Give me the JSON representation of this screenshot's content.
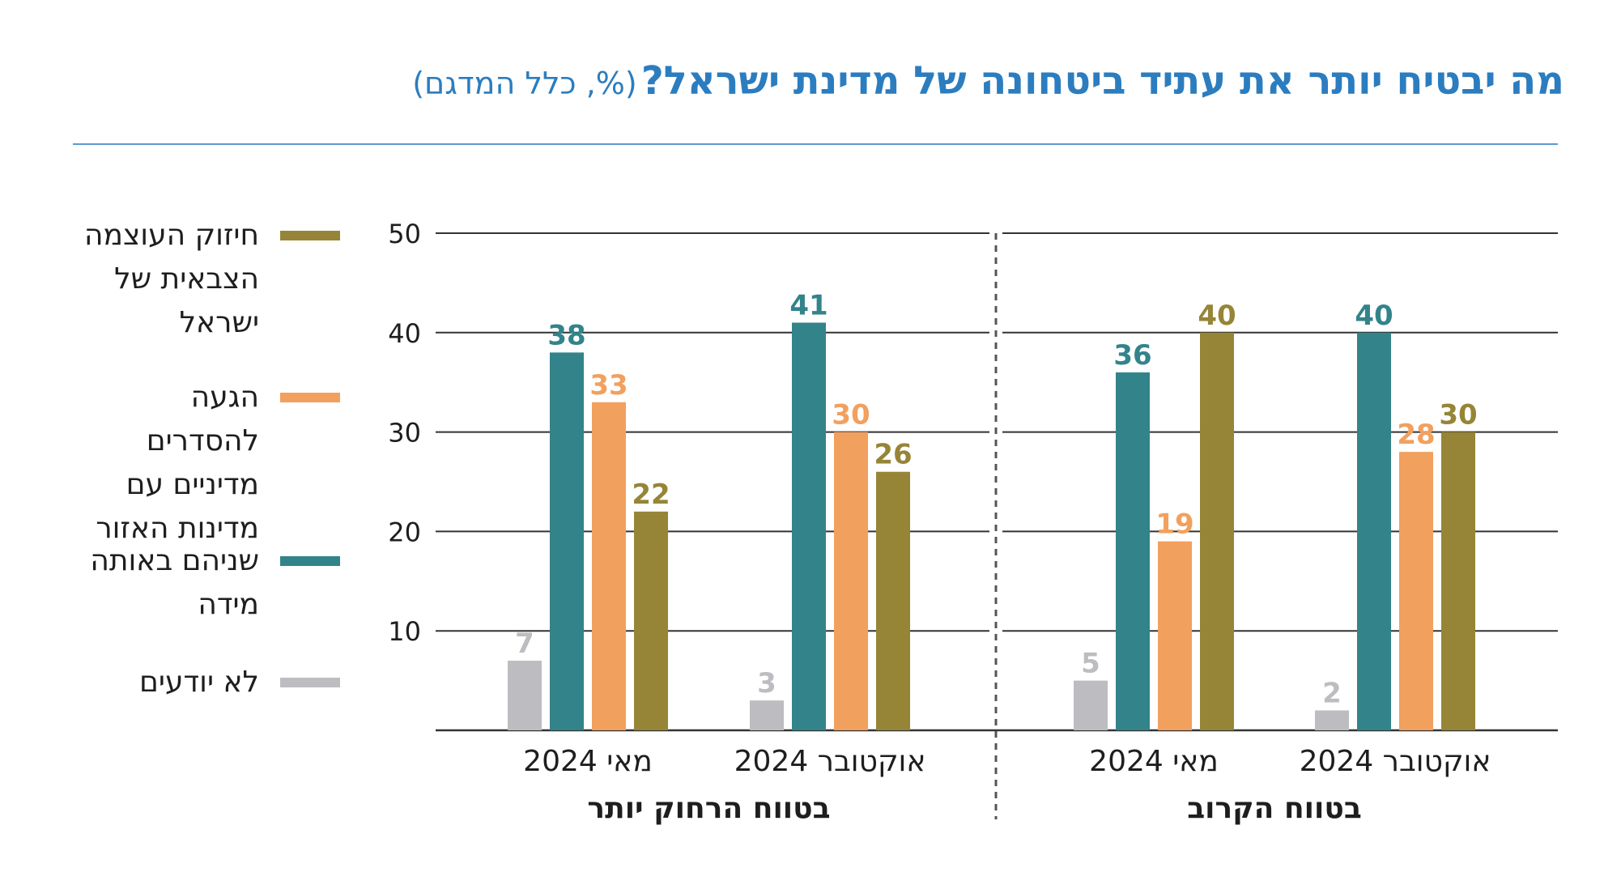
{
  "title": {
    "main": "מה יבטיח יותר את עתיד ביטחונה של מדינת ישראל?",
    "sub": "(%, כלל המדגם)"
  },
  "legend": [
    {
      "label": "חיזוק העוצמה הצבאית של ישראל",
      "color": "#968537"
    },
    {
      "label": "הגעה להסדרים מדיניים עם מדינות האזור",
      "color": "#f2a05e"
    },
    {
      "label": "שניהם באותה מידה",
      "color": "#33838a"
    },
    {
      "label": "לא יודעים",
      "color": "#bdbdc1"
    }
  ],
  "chart_data": {
    "type": "bar",
    "ylim": [
      0,
      50
    ],
    "yticks": [
      "10",
      "20",
      "30",
      "40",
      "50"
    ],
    "series_order_left_to_right": [
      "לא יודעים",
      "שניהם באותה מידה",
      "הגעה להסדרים מדיניים עם מדינות האזור",
      "חיזוק העוצמה הצבאית של ישראל"
    ],
    "panels": [
      {
        "label": "בטווח הרחוק יותר",
        "groups": [
          {
            "label": "מאי 2024",
            "values": [
              7,
              38,
              33,
              22
            ]
          },
          {
            "label": "אוקטובר 2024",
            "values": [
              3,
              41,
              30,
              26
            ]
          }
        ]
      },
      {
        "label": "בטווח הקרוב",
        "groups": [
          {
            "label": "מאי 2024",
            "values": [
              5,
              36,
              19,
              40
            ]
          },
          {
            "label": "אוקטובר 2024",
            "values": [
              2,
              40,
              28,
              30
            ]
          }
        ]
      }
    ],
    "colors": [
      "#bdbdc1",
      "#33838a",
      "#f2a05e",
      "#968537"
    ]
  }
}
